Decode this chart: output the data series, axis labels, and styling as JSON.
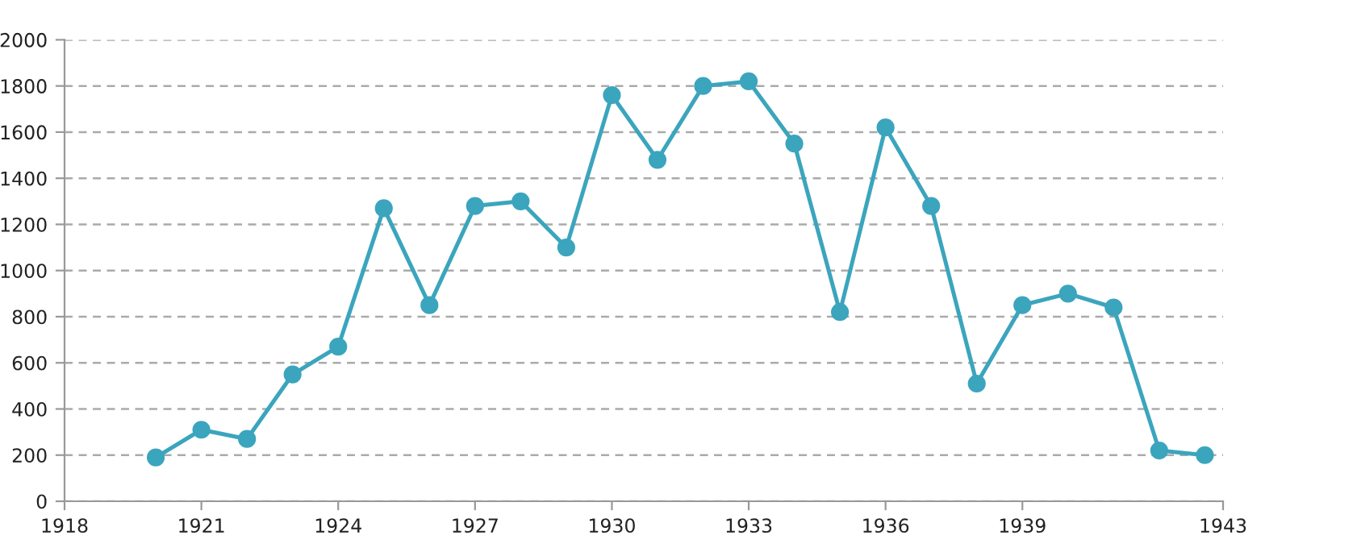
{
  "chart_data": {
    "type": "line",
    "x": [
      1920,
      1921,
      1922,
      1923,
      1924,
      1925,
      1926,
      1927,
      1928,
      1929,
      1930,
      1931,
      1932,
      1933,
      1934,
      1935,
      1936,
      1937,
      1938,
      1939,
      1940,
      1941,
      1942,
      1943
    ],
    "series": [
      {
        "color": "#3ba5bd",
        "values": [
          190,
          310,
          270,
          550,
          670,
          1270,
          850,
          1280,
          1300,
          1100,
          1760,
          1480,
          1800,
          1820,
          1550,
          820,
          1620,
          1280,
          510,
          850,
          900,
          840,
          220,
          200
        ]
      }
    ],
    "xlim": [
      1918,
      1943.4
    ],
    "xticks": [
      1918,
      1921,
      1924,
      1927,
      1930,
      1933,
      1936,
      1939,
      {
        "value": 1943.4,
        "label": "1943"
      }
    ],
    "ylim": [
      0,
      2000
    ],
    "yticks": [
      0,
      200,
      400,
      600,
      800,
      1000,
      1200,
      1400,
      1600,
      1800,
      2000
    ],
    "grid": "y",
    "marker": "circle",
    "line_style": "solid"
  }
}
